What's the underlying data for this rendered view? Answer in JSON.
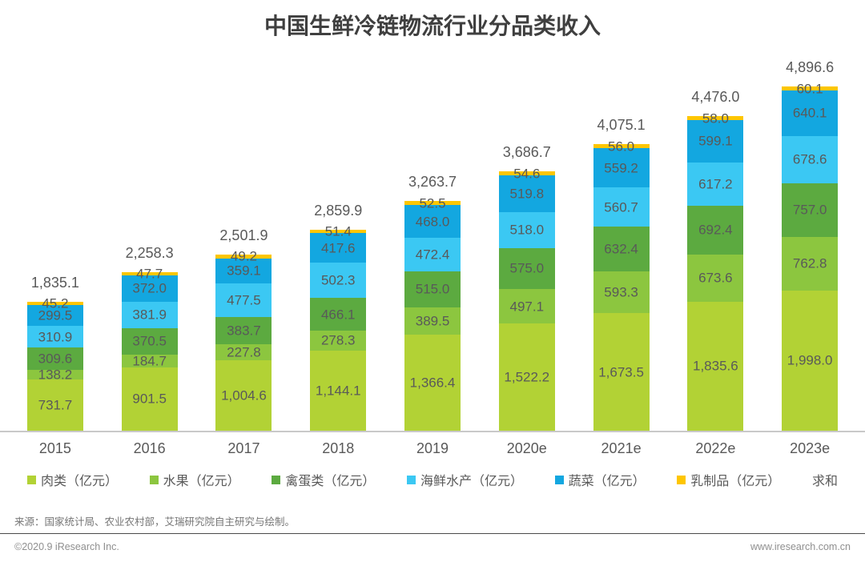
{
  "title": "中国生鲜冷链物流行业分品类收入",
  "chart_data": {
    "type": "bar",
    "stacked": true,
    "unit": "亿元",
    "categories": [
      "2015",
      "2016",
      "2017",
      "2018",
      "2019",
      "2020e",
      "2021e",
      "2022e",
      "2023e"
    ],
    "series": [
      {
        "name": "肉类（亿元）",
        "color": "#b2d235",
        "values": [
          731.7,
          901.5,
          1004.6,
          1144.1,
          1366.4,
          1522.2,
          1673.5,
          1835.6,
          1998.0
        ]
      },
      {
        "name": "水果（亿元）",
        "color": "#8cc63f",
        "values": [
          138.2,
          184.7,
          227.8,
          278.3,
          389.5,
          497.1,
          593.3,
          673.6,
          762.8
        ]
      },
      {
        "name": "禽蛋类（亿元）",
        "color": "#5caa40",
        "values": [
          309.6,
          370.5,
          383.7,
          466.1,
          515.0,
          575.0,
          632.4,
          692.4,
          757.0
        ]
      },
      {
        "name": "海鲜水产（亿元）",
        "color": "#3bc8f3",
        "values": [
          310.9,
          381.9,
          477.5,
          502.3,
          472.4,
          518.0,
          560.7,
          617.2,
          678.6
        ]
      },
      {
        "name": "蔬菜（亿元）",
        "color": "#13a7e0",
        "values": [
          299.5,
          372.0,
          359.1,
          417.6,
          468.0,
          519.8,
          559.2,
          599.1,
          640.1
        ]
      },
      {
        "name": "乳制品（亿元）",
        "color": "#fec601",
        "values": [
          45.2,
          47.7,
          49.2,
          51.4,
          52.5,
          54.6,
          56.0,
          58.0,
          60.1
        ]
      }
    ],
    "totals": [
      1835.1,
      2258.3,
      2501.9,
      2859.9,
      3263.7,
      3686.7,
      4075.1,
      4476.0,
      4896.6
    ],
    "totals_label": "求和",
    "legend_position": "bottom",
    "grid": false,
    "ylim": [
      0,
      4896.6
    ]
  },
  "footer": {
    "source": "来源：国家统计局、农业农村部，艾瑞研究院自主研究与绘制。",
    "copyright": "©2020.9 iResearch Inc.",
    "website": "www.iresearch.com.cn"
  }
}
